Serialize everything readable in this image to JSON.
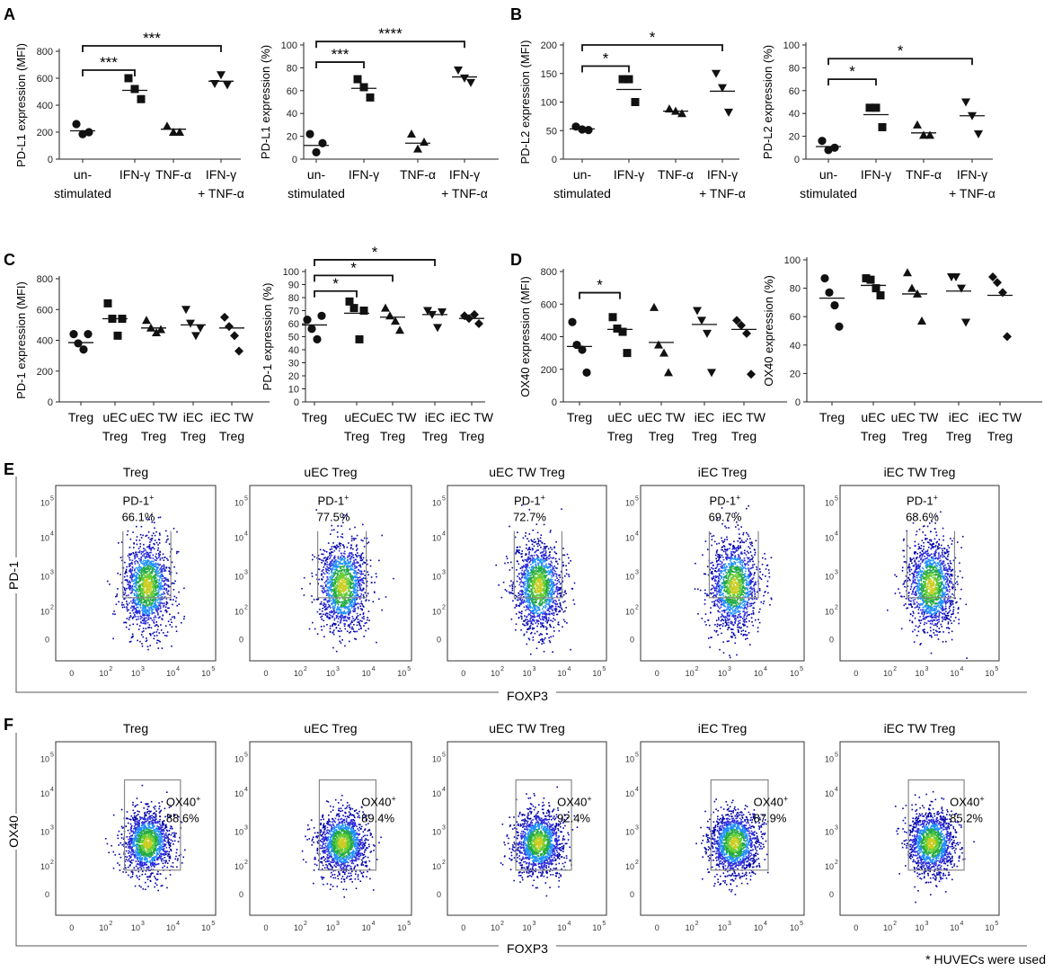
{
  "panel_letters": [
    "A",
    "B",
    "C",
    "D",
    "E",
    "F"
  ],
  "footnote": "* HUVECs were used",
  "chart_data": [
    {
      "type": "scatter",
      "panel": "A",
      "ylabel": "PD-L1 expression (MFI)",
      "ylim": [
        0,
        800
      ],
      "yticks": [
        0,
        200,
        400,
        600,
        800
      ],
      "categories": [
        [
          "un-",
          "stimulated"
        ],
        [
          "IFN-γ"
        ],
        [
          "TNF-α"
        ],
        [
          "IFN-γ",
          "+ TNF-α"
        ]
      ],
      "markers": [
        "circle",
        "square",
        "triangle",
        "triangle-down"
      ],
      "points": [
        [
          260,
          185,
          200
        ],
        [
          600,
          520,
          445
        ],
        [
          245,
          200,
          200
        ],
        [
          560,
          625,
          550
        ]
      ],
      "means": [
        210,
        510,
        222,
        578
      ],
      "significance": [
        {
          "from": 0,
          "to": 1,
          "label": "***",
          "y": 660
        },
        {
          "from": 0,
          "to": 3,
          "label": "***",
          "y": 840
        }
      ]
    },
    {
      "type": "scatter",
      "panel": "A",
      "ylabel": "PD-L1 expression (%)",
      "ylim": [
        0,
        100
      ],
      "yticks": [
        0,
        20,
        40,
        60,
        80,
        100
      ],
      "categories": [
        [
          "un-",
          "stimulated"
        ],
        [
          "IFN-γ"
        ],
        [
          "TNF-α"
        ],
        [
          "IFN-γ",
          "+ TNF-α"
        ]
      ],
      "markers": [
        "circle",
        "square",
        "triangle",
        "triangle-down"
      ],
      "points": [
        [
          22,
          6,
          14
        ],
        [
          70,
          63,
          54
        ],
        [
          22,
          9,
          15
        ],
        [
          78,
          71,
          67
        ]
      ],
      "means": [
        12,
        62,
        14,
        72
      ],
      "significance": [
        {
          "from": 0,
          "to": 1,
          "label": "***",
          "y": 85
        },
        {
          "from": 0,
          "to": 3,
          "label": "****",
          "y": 103
        }
      ]
    },
    {
      "type": "scatter",
      "panel": "B",
      "ylabel": "PD-L2 expression (MFI)",
      "ylim": [
        0,
        200
      ],
      "yticks": [
        0,
        50,
        100,
        150,
        200
      ],
      "categories": [
        [
          "un-",
          "stimulated"
        ],
        [
          "IFN-γ"
        ],
        [
          "TNF-α"
        ],
        [
          "IFN-γ",
          "+ TNF-α"
        ]
      ],
      "markers": [
        "circle",
        "square",
        "triangle",
        "triangle-down"
      ],
      "points": [
        [
          57,
          52,
          51
        ],
        [
          140,
          140,
          100
        ],
        [
          88,
          84,
          80
        ],
        [
          150,
          125,
          82
        ]
      ],
      "means": [
        53,
        122,
        84,
        119
      ],
      "significance": [
        {
          "from": 0,
          "to": 1,
          "label": "*",
          "y": 163
        },
        {
          "from": 0,
          "to": 3,
          "label": "*",
          "y": 200
        }
      ]
    },
    {
      "type": "scatter",
      "panel": "B",
      "ylabel": "PD-L2 expression (%)",
      "ylim": [
        0,
        100
      ],
      "yticks": [
        0,
        20,
        40,
        60,
        80,
        100
      ],
      "categories": [
        [
          "un-",
          "stimulated"
        ],
        [
          "IFN-γ"
        ],
        [
          "TNF-α"
        ],
        [
          "IFN-γ",
          "+ TNF-α"
        ]
      ],
      "markers": [
        "circle",
        "square",
        "triangle",
        "triangle-down"
      ],
      "points": [
        [
          16,
          8,
          10
        ],
        [
          45,
          45,
          28
        ],
        [
          30,
          21,
          21
        ],
        [
          50,
          38,
          22
        ]
      ],
      "means": [
        11,
        39,
        23,
        38
      ],
      "significance": [
        {
          "from": 0,
          "to": 1,
          "label": "*",
          "y": 70
        },
        {
          "from": 0,
          "to": 3,
          "label": "*",
          "y": 88
        }
      ]
    },
    {
      "type": "scatter",
      "panel": "C",
      "ylabel": "PD-1 expression (MFI)",
      "ylim": [
        0,
        800
      ],
      "yticks": [
        0,
        200,
        400,
        600,
        800
      ],
      "categories": [
        [
          "Treg"
        ],
        [
          "uEC",
          "Treg"
        ],
        [
          "uEC TW",
          "Treg"
        ],
        [
          "iEC",
          "Treg"
        ],
        [
          "iEC TW",
          "Treg"
        ]
      ],
      "markers": [
        "circle",
        "square",
        "triangle",
        "triangle-down",
        "diamond"
      ],
      "points": [
        [
          440,
          380,
          340,
          440
        ],
        [
          640,
          540,
          430,
          540
        ],
        [
          530,
          480,
          450,
          470
        ],
        [
          600,
          510,
          430,
          480
        ],
        [
          550,
          490,
          430,
          330
        ]
      ],
      "means": [
        385,
        540,
        480,
        500,
        480
      ],
      "significance": []
    },
    {
      "type": "scatter",
      "panel": "C",
      "ylabel": "PD-1 expression (%)",
      "ylim": [
        0,
        100
      ],
      "yticks": [
        0,
        10,
        20,
        30,
        40,
        50,
        60,
        70,
        80,
        90,
        100
      ],
      "categories": [
        [
          "Treg"
        ],
        [
          "uEC",
          "Treg"
        ],
        [
          "uEC TW",
          "Treg"
        ],
        [
          "iEC",
          "Treg"
        ],
        [
          "iEC TW",
          "Treg"
        ]
      ],
      "markers": [
        "circle",
        "square",
        "triangle",
        "triangle-down",
        "diamond"
      ],
      "points": [
        [
          63,
          56,
          48,
          66
        ],
        [
          77,
          72,
          48,
          70
        ],
        [
          72,
          66,
          62,
          55
        ],
        [
          70,
          67,
          57,
          69
        ],
        [
          66,
          64,
          67,
          60
        ]
      ],
      "means": [
        59,
        68,
        65,
        67,
        64
      ],
      "significance": [
        {
          "from": 0,
          "to": 1,
          "label": "*",
          "y": 85
        },
        {
          "from": 0,
          "to": 2,
          "label": "*",
          "y": 97
        },
        {
          "from": 0,
          "to": 3,
          "label": "*",
          "y": 109
        }
      ]
    },
    {
      "type": "scatter",
      "panel": "D",
      "ylabel": "OX40 expression (MFI)",
      "ylim": [
        0,
        800
      ],
      "yticks": [
        0,
        200,
        400,
        600,
        800
      ],
      "categories": [
        [
          "Treg"
        ],
        [
          "uEC",
          "Treg"
        ],
        [
          "uEC TW",
          "Treg"
        ],
        [
          "iEC",
          "Treg"
        ],
        [
          "iEC TW",
          "Treg"
        ]
      ],
      "markers": [
        "circle",
        "square",
        "triangle",
        "triangle-down",
        "diamond"
      ],
      "points": [
        [
          490,
          350,
          320,
          180
        ],
        [
          520,
          450,
          430,
          300
        ],
        [
          580,
          350,
          300,
          180
        ],
        [
          560,
          500,
          420,
          180
        ],
        [
          500,
          470,
          420,
          170
        ]
      ],
      "means": [
        340,
        445,
        365,
        475,
        445
      ],
      "significance": [
        {
          "from": 0,
          "to": 1,
          "label": "*",
          "y": 670
        }
      ]
    },
    {
      "type": "scatter",
      "panel": "D",
      "ylabel": "OX40 expression (%)",
      "ylim": [
        0,
        100
      ],
      "yticks": [
        0,
        20,
        40,
        60,
        80,
        100
      ],
      "categories": [
        [
          "Treg"
        ],
        [
          "uEC",
          "Treg"
        ],
        [
          "uEC TW",
          "Treg"
        ],
        [
          "iEC",
          "Treg"
        ],
        [
          "iEC TW",
          "Treg"
        ]
      ],
      "markers": [
        "circle",
        "square",
        "triangle",
        "triangle-down",
        "diamond"
      ],
      "points": [
        [
          87,
          77,
          68,
          53
        ],
        [
          87,
          86,
          80,
          75
        ],
        [
          91,
          80,
          76,
          57
        ],
        [
          88,
          88,
          80,
          56
        ],
        [
          88,
          84,
          77,
          46
        ]
      ],
      "means": [
        73,
        82,
        76,
        78,
        75
      ],
      "significance": []
    }
  ],
  "flow_panels": [
    {
      "panel": "E",
      "ylabel": "PD-1",
      "xlabel": "FOXP3",
      "x_ticks": [
        "0",
        "10",
        "10",
        "10",
        "10"
      ],
      "x_exps": [
        "",
        "2",
        "3",
        "4",
        "5"
      ],
      "y_ticks": [
        "10",
        "10",
        "10",
        "10",
        "0"
      ],
      "y_exps": [
        "5",
        "4",
        "3",
        "2",
        ""
      ],
      "plots": [
        {
          "title": "Treg",
          "gate_label": "PD-1",
          "gate_sup": "+",
          "percent": "66.1%"
        },
        {
          "title": "uEC Treg",
          "gate_label": "PD-1",
          "gate_sup": "+",
          "percent": "77.5%"
        },
        {
          "title": "uEC TW Treg",
          "gate_label": "PD-1",
          "gate_sup": "+",
          "percent": "72.7%"
        },
        {
          "title": "iEC Treg",
          "gate_label": "PD-1",
          "gate_sup": "+",
          "percent": "69.7%"
        },
        {
          "title": "iEC TW Treg",
          "gate_label": "PD-1",
          "gate_sup": "+",
          "percent": "68.6%"
        }
      ]
    },
    {
      "panel": "F",
      "ylabel": "OX40",
      "xlabel": "FOXP3",
      "x_ticks": [
        "0",
        "10",
        "10",
        "10",
        "10"
      ],
      "x_exps": [
        "",
        "2",
        "3",
        "4",
        "5"
      ],
      "y_ticks": [
        "10",
        "10",
        "10",
        "10",
        "0"
      ],
      "y_exps": [
        "5",
        "4",
        "3",
        "2",
        ""
      ],
      "plots": [
        {
          "title": "Treg",
          "gate_label": "OX40",
          "gate_sup": "+",
          "percent": "88.6%"
        },
        {
          "title": "uEC Treg",
          "gate_label": "OX40",
          "gate_sup": "+",
          "percent": "89.4%"
        },
        {
          "title": "uEC TW Treg",
          "gate_label": "OX40",
          "gate_sup": "+",
          "percent": "92.4%"
        },
        {
          "title": "iEC Treg",
          "gate_label": "OX40",
          "gate_sup": "+",
          "percent": "87.9%"
        },
        {
          "title": "iEC TW Treg",
          "gate_label": "OX40",
          "gate_sup": "+",
          "percent": "85.2%"
        }
      ]
    }
  ]
}
